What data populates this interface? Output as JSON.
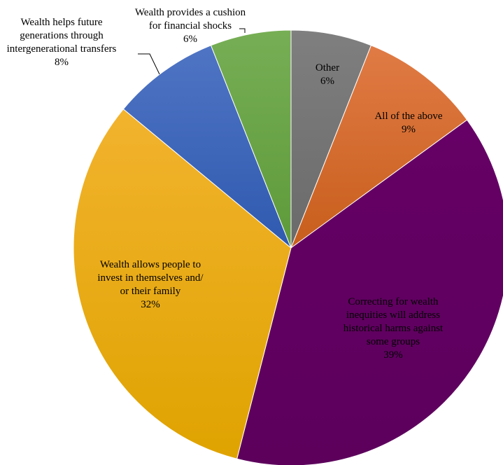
{
  "chart_data": {
    "type": "pie",
    "title": "",
    "start_angle_deg": 0,
    "direction": "clockwise",
    "slices": [
      {
        "label_lines": [
          "Other"
        ],
        "value": 6,
        "value_label": "6%",
        "color": "#7f7f7f",
        "shade": "#6a6a6a",
        "label_color": "#000000"
      },
      {
        "label_lines": [
          "All of the above"
        ],
        "value": 9,
        "value_label": "9%",
        "color": "#e07b45",
        "shade": "#c85e1c",
        "label_color": "#000000"
      },
      {
        "label_lines": [
          "Correcting for wealth",
          "inequities will address",
          "historical harms against",
          "some groups"
        ],
        "value": 39,
        "value_label": "39%",
        "color": "#660066",
        "shade": "#5c005c",
        "label_color": "#000000"
      },
      {
        "label_lines": [
          "Wealth allows people to",
          "invest in themselves and/",
          "or their family"
        ],
        "value": 32,
        "value_label": "32%",
        "color": "#f2b32e",
        "shade": "#dfa300",
        "label_color": "#000000"
      },
      {
        "label_lines": [
          "Wealth helps future",
          "generations through",
          "intergenerational transfers"
        ],
        "value": 8,
        "value_label": "8%",
        "color": "#4f74c4",
        "shade": "#2f5aaf",
        "label_color": "#000000"
      },
      {
        "label_lines": [
          "Wealth provides a cushion",
          "for financial shocks"
        ],
        "value": 6,
        "value_label": "6%",
        "color": "#76ae55",
        "shade": "#5e9a3a",
        "label_color": "#000000"
      }
    ]
  }
}
